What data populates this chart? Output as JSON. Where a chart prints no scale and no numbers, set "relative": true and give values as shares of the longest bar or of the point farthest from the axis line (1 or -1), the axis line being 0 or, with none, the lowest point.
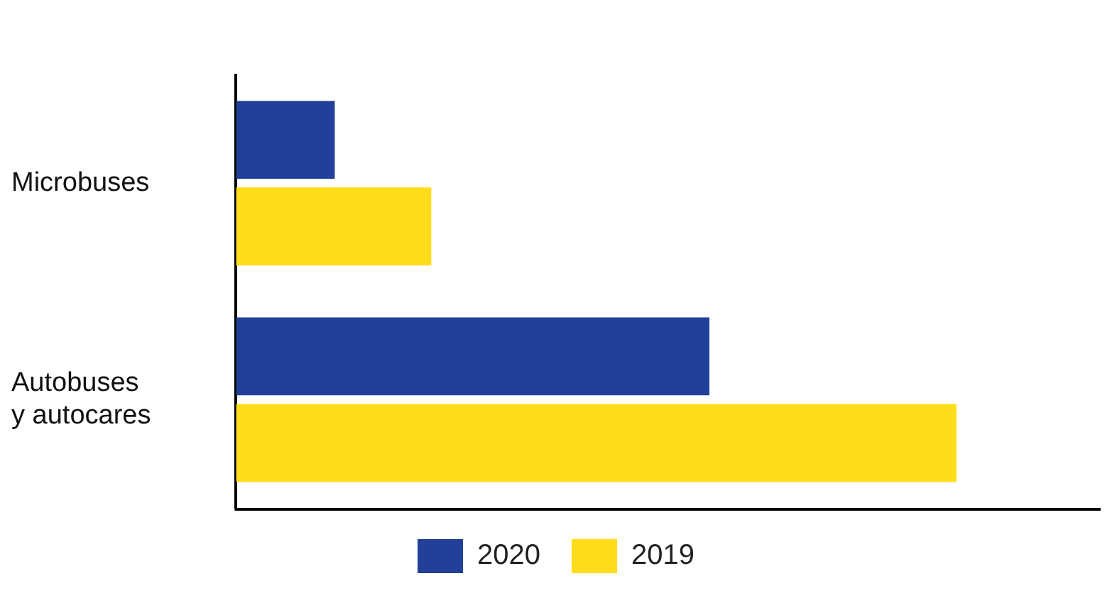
{
  "chart_data": {
    "type": "bar",
    "orientation": "horizontal",
    "relative": true,
    "categories": [
      "Microbuses",
      "Autobuses y autocares"
    ],
    "series": [
      {
        "name": "2020",
        "color": "#22409a",
        "values": [
          0.137,
          0.657
        ]
      },
      {
        "name": "2019",
        "color": "#ffdd1a",
        "values": [
          0.271,
          1
        ]
      }
    ],
    "legend": "bottom"
  }
}
